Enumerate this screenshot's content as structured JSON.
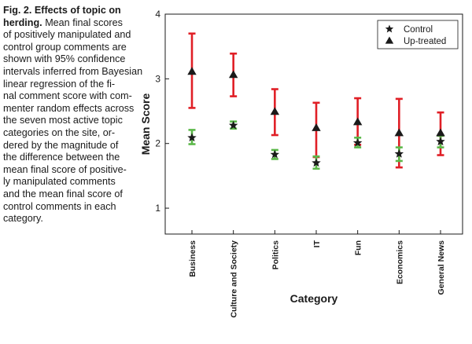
{
  "caption": {
    "title_lines": [
      "Fig. 2. Effects of topic on",
      "herding."
    ],
    "body_first_line_rest": "Mean final scores",
    "body_lines": [
      "of positively manipulated and",
      "control group comments are",
      "shown with 95% confidence",
      "intervals inferred from Bayesian",
      "linear regression of the fi-",
      "nal comment score with com-",
      "menter random effects across",
      "the seven most active topic",
      "categories on the site, or-",
      "dered by the magnitude of",
      "the difference between the",
      "mean final score of positive-",
      "ly manipulated comments",
      "and the mean final score of",
      "control comments in each",
      "category."
    ]
  },
  "chart_data": {
    "type": "scatter",
    "title": "",
    "xlabel": "Category",
    "ylabel": "Mean Score",
    "ylim": [
      0.6,
      4.0
    ],
    "yticks": [
      1,
      2,
      3,
      4
    ],
    "categories": [
      "Business",
      "Culture and Society",
      "Politics",
      "IT",
      "Fun",
      "Economics",
      "General News"
    ],
    "legend_position": "top-right",
    "series": [
      {
        "name": "Control",
        "marker": "star",
        "color": "#1a1a1a",
        "error_color": "#5cb84a",
        "values": [
          2.09,
          2.28,
          1.83,
          1.7,
          2.01,
          1.84,
          2.03
        ],
        "ci_low": [
          1.99,
          2.23,
          1.76,
          1.61,
          1.94,
          1.73,
          1.94
        ],
        "ci_high": [
          2.21,
          2.34,
          1.9,
          1.8,
          2.09,
          1.94,
          2.12
        ]
      },
      {
        "name": "Up-treated",
        "marker": "triangle",
        "color": "#1a1a1a",
        "error_color": "#e01f26",
        "values": [
          3.11,
          3.06,
          2.49,
          2.24,
          2.33,
          2.16,
          2.16
        ],
        "ci_low": [
          2.55,
          2.73,
          2.13,
          1.79,
          1.98,
          1.63,
          1.82
        ],
        "ci_high": [
          3.7,
          3.39,
          2.84,
          2.63,
          2.7,
          2.69,
          2.48
        ]
      }
    ]
  }
}
